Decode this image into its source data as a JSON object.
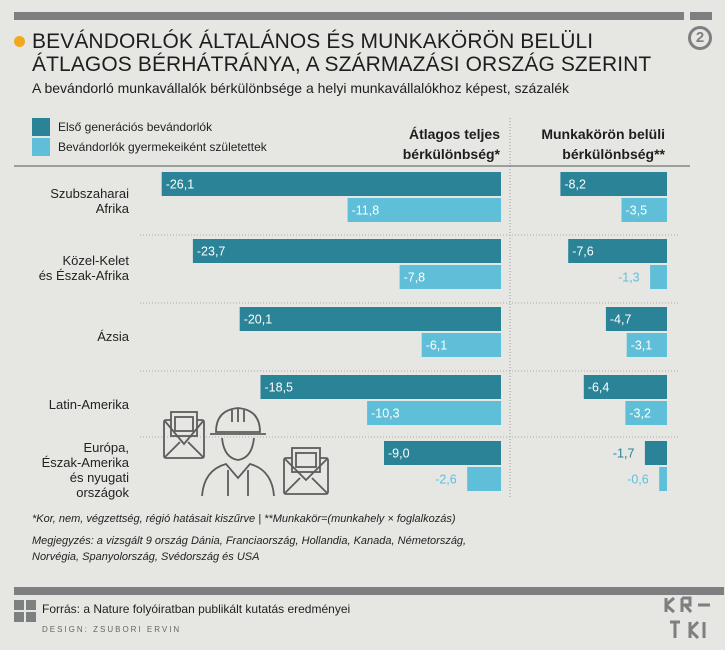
{
  "header": {
    "title": "BEVÁNDORLÓK ÁLTALÁNOS ÉS MUNKAKÖRÖN BELÜLI ÁTLAGOS BÉRHÁTRÁNYA, A SZÁRMAZÁSI ORSZÁG SZERINT",
    "subtitle": "A bevándorló munkavállalók bérkülönbsége a helyi munkavállalókhoz képest, százalék",
    "page_number": "2"
  },
  "colors": {
    "first_gen": "#2a8397",
    "second_gen": "#5fbfd9",
    "accent": "#f0a91a",
    "grey": "#7d7f80"
  },
  "chart_data": {
    "type": "bar",
    "orientation": "horizontal",
    "categories": [
      "Szubszaharai Afrika",
      "Közel-Kelet és Észak-Afrika",
      "Ázsia",
      "Latin-Amerika",
      "Európa, Észak-Amerika és nyugati országok"
    ],
    "category_lines": [
      [
        "Szubszaharai",
        "Afrika"
      ],
      [
        "Közel-Kelet",
        "és Észak-Afrika"
      ],
      [
        "Ázsia"
      ],
      [
        "Latin-Amerika"
      ],
      [
        "Európa,",
        "Észak-Amerika",
        "és nyugati",
        "országok"
      ]
    ],
    "panels": [
      {
        "title_lines": [
          "Átlagos teljes",
          "bérkülönbség*"
        ],
        "series": [
          {
            "name": "Első generációs bevándorlók",
            "values": [
              -26.1,
              -23.7,
              -20.1,
              -18.5,
              -9.0
            ]
          },
          {
            "name": "Bevándorlók gyermekeiként születettek",
            "values": [
              -11.8,
              -7.8,
              -6.1,
              -10.3,
              -2.6
            ]
          }
        ]
      },
      {
        "title_lines": [
          "Munkakörön belüli",
          "bérkülönbség**"
        ],
        "series": [
          {
            "name": "Első generációs bevándorlók",
            "values": [
              -8.2,
              -7.6,
              -4.7,
              -6.4,
              -1.7
            ]
          },
          {
            "name": "Bevándorlók gyermekeiként születettek",
            "values": [
              -3.5,
              -1.3,
              -3.1,
              -3.2,
              -0.6
            ]
          }
        ]
      }
    ],
    "legend": [
      {
        "label": "Első generációs bevándorlók"
      },
      {
        "label": "Bevándorlók gyermekeiként születettek"
      }
    ]
  },
  "notes": {
    "footnote": "*Kor, nem, végzettség, régió hatásait kiszűrve | **Munkakör=(munkahely × foglalkozás)",
    "remark_line1": "Megjegyzés: a vizsgált 9 ország Dánia, Franciaország, Hollandia, Kanada, Németország,",
    "remark_line2": "Norvégia, Spanyolország, Svédország és USA"
  },
  "footer": {
    "source": "Forrás: a Nature folyóiratban publikált kutatás eredményei",
    "design": "DESIGN: ZSUBORI ERVIN",
    "logo_icon": "krtk-logo-icon"
  },
  "illustration": {
    "icons": [
      "money-envelope-icon",
      "worker-hardhat-icon"
    ]
  }
}
